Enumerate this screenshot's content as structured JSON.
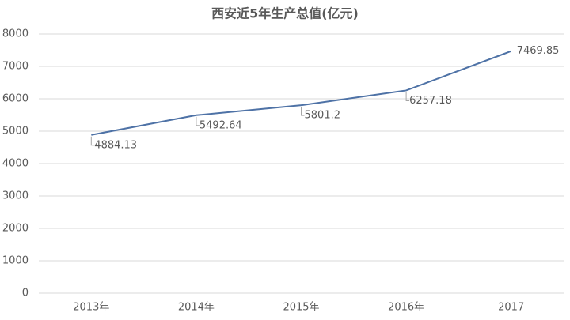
{
  "chart_data": {
    "type": "line",
    "title": "西安近5年生产总值(亿元)",
    "categories": [
      "2013年",
      "2014年",
      "2015年",
      "2016年",
      "2017"
    ],
    "values": [
      4884.13,
      5492.64,
      5801.2,
      6257.18,
      7469.85
    ],
    "color": "#4e72a6",
    "ylim": [
      0,
      8000
    ],
    "yticks": [
      0,
      1000,
      2000,
      3000,
      4000,
      5000,
      6000,
      7000,
      8000
    ],
    "grid": true
  }
}
